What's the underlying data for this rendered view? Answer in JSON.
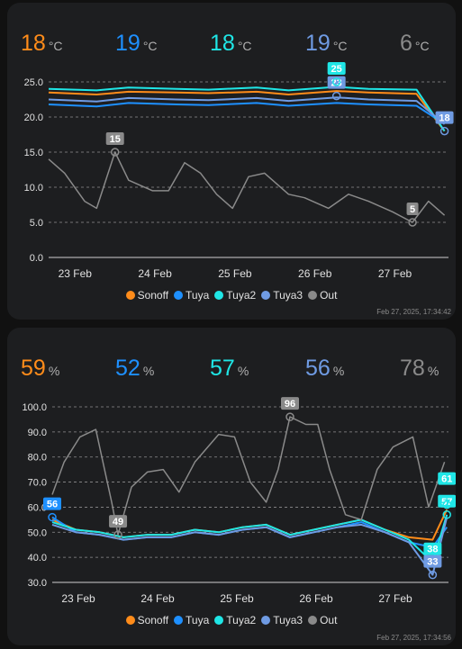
{
  "colors": {
    "Sonoff": "#ff8c1a",
    "Tuya": "#1e90ff",
    "Tuya2": "#1fe6e6",
    "Tuya3": "#6f9be3",
    "Out": "#8a8a8a",
    "card_bg": "#1d1e20",
    "grid": "#8f8f8f",
    "text": "#e1e1e1"
  },
  "legend": [
    "Sonoff",
    "Tuya",
    "Tuya2",
    "Tuya3",
    "Out"
  ],
  "temperature": {
    "unit": "°C",
    "stats": [
      {
        "name": "Sonoff",
        "value": "18"
      },
      {
        "name": "Tuya",
        "value": "19"
      },
      {
        "name": "Tuya2",
        "value": "18"
      },
      {
        "name": "Tuya3",
        "value": "19"
      },
      {
        "name": "Out",
        "value": "6"
      }
    ],
    "timestamp": "Feb 27, 2025, 17:34:42"
  },
  "humidity": {
    "unit": "%",
    "stats": [
      {
        "name": "Sonoff",
        "value": "59"
      },
      {
        "name": "Tuya",
        "value": "52"
      },
      {
        "name": "Tuya2",
        "value": "57"
      },
      {
        "name": "Tuya3",
        "value": "56"
      },
      {
        "name": "Out",
        "value": "78"
      }
    ],
    "timestamp": "Feb 27, 2025, 17:34:56"
  },
  "chart_data": [
    {
      "type": "line",
      "x_labels": [
        "23 Feb",
        "24 Feb",
        "25 Feb",
        "26 Feb",
        "27 Feb"
      ],
      "x_range": [
        "22 Feb 17:30",
        "27 Feb 17:34"
      ],
      "ylim": [
        0,
        25
      ],
      "yticks": [
        "0.0",
        "5.0",
        "10.0",
        "15.0",
        "20.0",
        "25.0"
      ],
      "grid": true,
      "legend_position": "bottom",
      "series": [
        {
          "name": "Sonoff",
          "x": [
            0,
            0.6,
            1,
            1.6,
            2,
            2.6,
            3,
            3.6,
            4,
            4.6,
            4.95
          ],
          "values": [
            23.5,
            23.2,
            23.6,
            23.5,
            23.4,
            23.6,
            23.2,
            23.7,
            23.5,
            23.3,
            18
          ]
        },
        {
          "name": "Tuya",
          "x": [
            0,
            0.6,
            1,
            1.6,
            2,
            2.6,
            3,
            3.6,
            4,
            4.6,
            4.95
          ],
          "values": [
            21.8,
            21.5,
            22.0,
            21.8,
            21.7,
            22.0,
            21.6,
            22.0,
            21.8,
            21.6,
            19
          ]
        },
        {
          "name": "Tuya2",
          "x": [
            0,
            0.6,
            1,
            1.6,
            2,
            2.6,
            3,
            3.6,
            4,
            4.6,
            4.95
          ],
          "values": [
            24.0,
            23.8,
            24.2,
            24.0,
            23.9,
            24.2,
            23.8,
            24.3,
            24.0,
            23.9,
            18
          ]
        },
        {
          "name": "Tuya3",
          "x": [
            0,
            0.6,
            1,
            1.6,
            2,
            2.6,
            3,
            3.6,
            4,
            4.6,
            4.95
          ],
          "values": [
            22.5,
            22.2,
            22.7,
            22.5,
            22.4,
            22.7,
            22.3,
            22.8,
            22.5,
            22.3,
            19
          ]
        },
        {
          "name": "Out",
          "x": [
            0,
            0.2,
            0.45,
            0.6,
            0.83,
            1,
            1.3,
            1.5,
            1.7,
            1.9,
            2.1,
            2.3,
            2.5,
            2.7,
            3.0,
            3.2,
            3.5,
            3.75,
            4.0,
            4.3,
            4.55,
            4.75,
            4.95
          ],
          "values": [
            14,
            12,
            8,
            7,
            15,
            11,
            9.5,
            9.5,
            13.5,
            12,
            9,
            7,
            11.5,
            12,
            9,
            8.5,
            7,
            9,
            8,
            6.5,
            5,
            8,
            6
          ]
        }
      ],
      "annotations": [
        {
          "series": "Out",
          "label": "15"
        },
        {
          "series": "Out",
          "label": "5"
        },
        {
          "series": "Tuya3",
          "label": "23"
        },
        {
          "series": "Tuya2",
          "label": "25"
        },
        {
          "series": "Tuya3",
          "label": "18"
        }
      ]
    },
    {
      "type": "line",
      "x_labels": [
        "23 Feb",
        "24 Feb",
        "25 Feb",
        "26 Feb",
        "27 Feb"
      ],
      "x_range": [
        "22 Feb 17:30",
        "27 Feb 17:34"
      ],
      "ylim": [
        30,
        100
      ],
      "yticks": [
        "30.0",
        "40.0",
        "50.0",
        "60.0",
        "70.0",
        "80.0",
        "90.0",
        "100.0"
      ],
      "grid": true,
      "legend_position": "bottom",
      "series": [
        {
          "name": "Sonoff",
          "x": [
            0,
            0.3,
            0.6,
            0.9,
            1.2,
            1.5,
            1.8,
            2.1,
            2.4,
            2.7,
            3.0,
            3.3,
            3.6,
            3.9,
            4.2,
            4.5,
            4.8,
            4.98
          ],
          "values": [
            55,
            51,
            50,
            48,
            49,
            49,
            51,
            50,
            52,
            53,
            49,
            51,
            53,
            55,
            51,
            48,
            47,
            59
          ]
        },
        {
          "name": "Tuya",
          "x": [
            0,
            0.3,
            0.6,
            0.9,
            1.2,
            1.5,
            1.8,
            2.1,
            2.4,
            2.7,
            3.0,
            3.3,
            3.6,
            3.9,
            4.2,
            4.5,
            4.8,
            4.98
          ],
          "values": [
            56,
            50,
            49,
            47,
            48,
            48,
            50,
            49,
            51,
            52,
            48,
            50,
            52,
            54,
            50,
            46,
            44,
            52
          ]
        },
        {
          "name": "Tuya2",
          "x": [
            0,
            0.3,
            0.6,
            0.9,
            1.2,
            1.5,
            1.8,
            2.1,
            2.4,
            2.7,
            3.0,
            3.3,
            3.6,
            3.9,
            4.2,
            4.5,
            4.8,
            4.98
          ],
          "values": [
            54,
            51,
            50,
            48,
            49,
            49,
            51,
            50,
            52,
            53,
            49,
            51,
            53,
            55,
            51,
            47,
            38,
            57
          ]
        },
        {
          "name": "Tuya3",
          "x": [
            0,
            0.3,
            0.6,
            0.9,
            1.2,
            1.5,
            1.8,
            2.1,
            2.4,
            2.7,
            3.0,
            3.3,
            3.6,
            3.9,
            4.2,
            4.5,
            4.8,
            4.98
          ],
          "values": [
            53,
            50,
            49,
            47,
            48,
            48,
            50,
            49,
            51,
            52,
            48,
            50,
            52,
            53,
            50,
            46,
            33,
            56
          ]
        },
        {
          "name": "Out",
          "x": [
            0,
            0.15,
            0.35,
            0.55,
            0.75,
            0.83,
            1.0,
            1.2,
            1.4,
            1.6,
            1.8,
            2.1,
            2.3,
            2.5,
            2.7,
            2.85,
            3.0,
            3.2,
            3.35,
            3.5,
            3.7,
            3.9,
            4.1,
            4.3,
            4.55,
            4.75,
            4.95
          ],
          "values": [
            65,
            78,
            88,
            91,
            62,
            49,
            68,
            74,
            75,
            66,
            78,
            89,
            88,
            70,
            62,
            75,
            96,
            93,
            93,
            75,
            57,
            55,
            75,
            84,
            88,
            60,
            78
          ]
        }
      ],
      "annotations": [
        {
          "series": "Out",
          "label": "96"
        },
        {
          "series": "Out",
          "label": "49"
        },
        {
          "series": "Tuya",
          "label": "56"
        },
        {
          "series": "Tuya2",
          "label": "57"
        },
        {
          "series": "Tuya2",
          "label": "61"
        },
        {
          "series": "Tuya2",
          "label": "38"
        },
        {
          "series": "Tuya3",
          "label": "33"
        }
      ]
    }
  ]
}
